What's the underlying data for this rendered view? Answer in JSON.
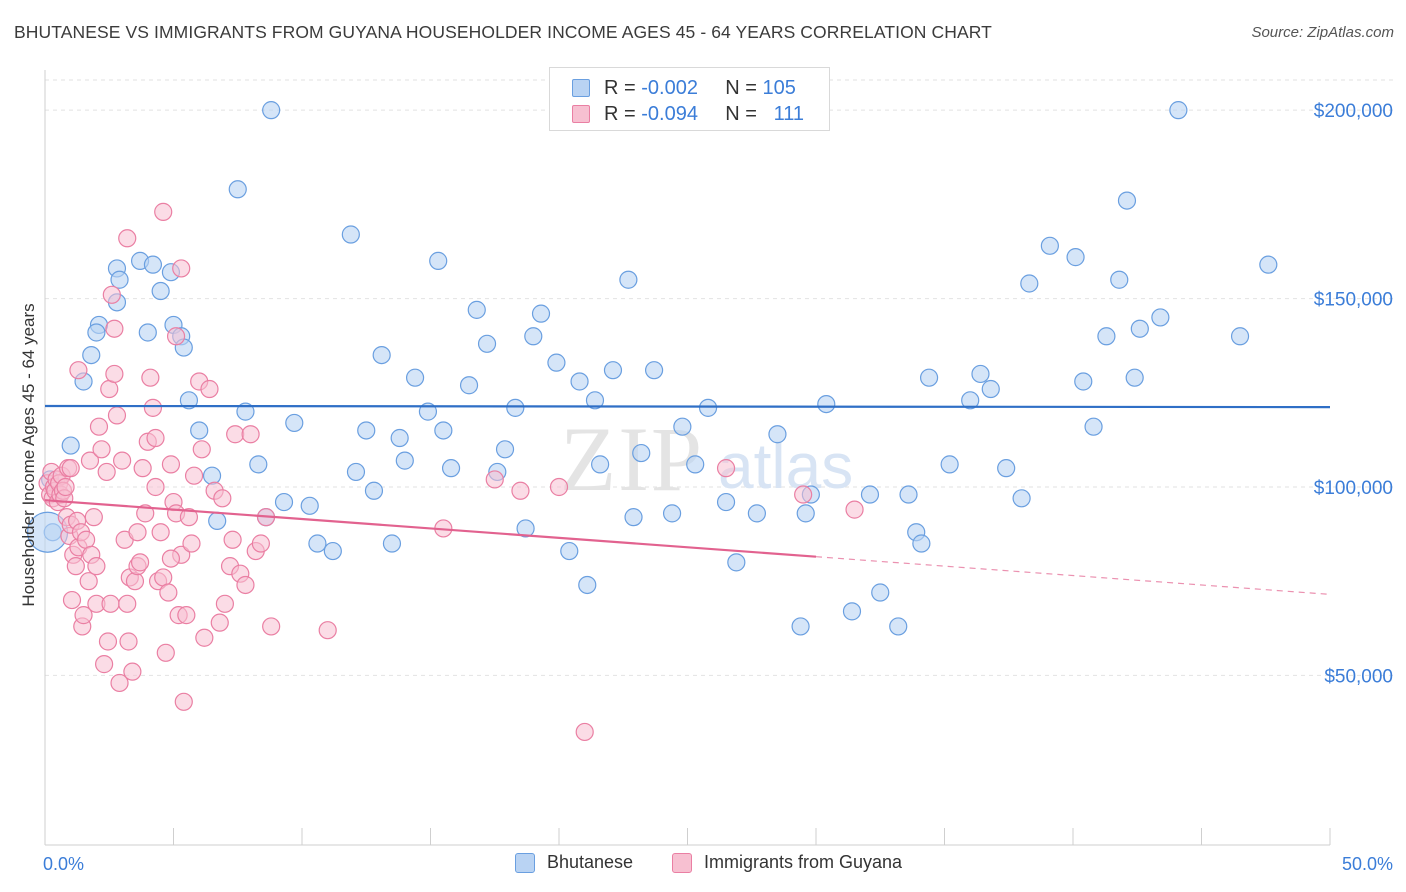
{
  "title": "BHUTANESE VS IMMIGRANTS FROM GUYANA HOUSEHOLDER INCOME AGES 45 - 64 YEARS CORRELATION CHART",
  "source": "Source: ZipAtlas.com",
  "watermark": "ZIPatlas",
  "legend": {
    "rows": [
      {
        "r_label": "R =",
        "r_value": "-0.002",
        "n_label": "N =",
        "n_value": "105"
      },
      {
        "r_label": "R =",
        "r_value": "-0.094",
        "n_label": "N =",
        "n_value": "111"
      }
    ]
  },
  "colors": {
    "blue_fill": "#b9d3f3",
    "blue_stroke": "#6a9fe0",
    "blue_line": "#2f6fc6",
    "pink_fill": "#f7c0d1",
    "pink_stroke": "#ea7fa3",
    "pink_line": "#e2628f",
    "axis_label": "#3b7dd8",
    "grid": "#e2e2e2"
  },
  "chart_data": {
    "type": "scatter",
    "title": "BHUTANESE VS IMMIGRANTS FROM GUYANA HOUSEHOLDER INCOME AGES 45 - 64 YEARS CORRELATION CHART",
    "xlabel": "",
    "ylabel": "Householder Income Ages 45 - 64 years",
    "xlim": [
      0,
      50
    ],
    "ylim": [
      5000,
      208000
    ],
    "x_tick_labels": [
      "0.0%",
      "50.0%"
    ],
    "y_ticks": [
      50000,
      100000,
      150000,
      200000
    ],
    "y_tick_labels": [
      "$50,000",
      "$100,000",
      "$150,000",
      "$200,000"
    ],
    "grid": true,
    "series": [
      {
        "name": "Bhutanese",
        "r": -0.002,
        "n": 105,
        "trend": {
          "x0": 0,
          "y0": 121500,
          "x1": 50,
          "y1": 121200
        },
        "points": [
          [
            0.3,
            88000
          ],
          [
            1.0,
            111000
          ],
          [
            0.2,
            102000
          ],
          [
            1.5,
            128000
          ],
          [
            1.8,
            135000
          ],
          [
            2.1,
            143000
          ],
          [
            2.0,
            141000
          ],
          [
            2.8,
            158000
          ],
          [
            2.9,
            155000
          ],
          [
            2.8,
            149000
          ],
          [
            3.7,
            160000
          ],
          [
            4.2,
            159000
          ],
          [
            4.5,
            152000
          ],
          [
            4.9,
            157000
          ],
          [
            4.0,
            141000
          ],
          [
            5.0,
            143000
          ],
          [
            5.3,
            140000
          ],
          [
            5.4,
            137000
          ],
          [
            5.6,
            123000
          ],
          [
            6.0,
            115000
          ],
          [
            6.5,
            103000
          ],
          [
            6.7,
            91000
          ],
          [
            7.5,
            179000
          ],
          [
            7.8,
            120000
          ],
          [
            8.3,
            106000
          ],
          [
            8.6,
            92000
          ],
          [
            9.3,
            96000
          ],
          [
            9.7,
            117000
          ],
          [
            10.3,
            95000
          ],
          [
            10.6,
            85000
          ],
          [
            11.2,
            83000
          ],
          [
            11.9,
            167000
          ],
          [
            12.1,
            104000
          ],
          [
            12.5,
            115000
          ],
          [
            12.8,
            99000
          ],
          [
            13.1,
            135000
          ],
          [
            13.5,
            85000
          ],
          [
            13.8,
            113000
          ],
          [
            14.0,
            107000
          ],
          [
            14.4,
            129000
          ],
          [
            14.9,
            120000
          ],
          [
            15.3,
            160000
          ],
          [
            15.5,
            115000
          ],
          [
            15.8,
            105000
          ],
          [
            16.5,
            127000
          ],
          [
            16.8,
            147000
          ],
          [
            17.2,
            138000
          ],
          [
            17.6,
            104000
          ],
          [
            17.9,
            110000
          ],
          [
            18.3,
            121000
          ],
          [
            18.7,
            89000
          ],
          [
            19.0,
            140000
          ],
          [
            19.3,
            146000
          ],
          [
            19.9,
            133000
          ],
          [
            20.4,
            83000
          ],
          [
            20.8,
            128000
          ],
          [
            21.1,
            74000
          ],
          [
            21.4,
            123000
          ],
          [
            21.6,
            106000
          ],
          [
            22.1,
            131000
          ],
          [
            22.7,
            155000
          ],
          [
            22.9,
            92000
          ],
          [
            23.2,
            109000
          ],
          [
            23.7,
            131000
          ],
          [
            24.4,
            93000
          ],
          [
            24.8,
            116000
          ],
          [
            25.3,
            106000
          ],
          [
            25.8,
            121000
          ],
          [
            26.5,
            96000
          ],
          [
            26.9,
            80000
          ],
          [
            27.7,
            93000
          ],
          [
            28.5,
            114000
          ],
          [
            29.4,
            63000
          ],
          [
            29.6,
            93000
          ],
          [
            29.8,
            98000
          ],
          [
            30.4,
            122000
          ],
          [
            31.4,
            67000
          ],
          [
            32.1,
            98000
          ],
          [
            32.5,
            72000
          ],
          [
            33.2,
            63000
          ],
          [
            33.6,
            98000
          ],
          [
            33.9,
            88000
          ],
          [
            34.1,
            85000
          ],
          [
            34.4,
            129000
          ],
          [
            35.2,
            106000
          ],
          [
            36.0,
            123000
          ],
          [
            36.4,
            130000
          ],
          [
            36.8,
            126000
          ],
          [
            37.4,
            105000
          ],
          [
            38.0,
            97000
          ],
          [
            38.3,
            154000
          ],
          [
            39.1,
            164000
          ],
          [
            40.1,
            161000
          ],
          [
            40.4,
            128000
          ],
          [
            40.8,
            116000
          ],
          [
            41.3,
            140000
          ],
          [
            41.8,
            155000
          ],
          [
            42.1,
            176000
          ],
          [
            42.4,
            129000
          ],
          [
            42.6,
            142000
          ],
          [
            43.4,
            145000
          ],
          [
            46.5,
            140000
          ],
          [
            47.6,
            159000
          ],
          [
            44.1,
            200000
          ],
          [
            8.8,
            200000
          ]
        ]
      },
      {
        "name": "Immigrants from Guyana",
        "r": -0.094,
        "n": 111,
        "trend": {
          "x0": 0,
          "y0": 96500,
          "x1": 30,
          "y1": 81500,
          "dash_x1": 50,
          "dash_y1": 71500
        },
        "points": [
          [
            0.1,
            101000
          ],
          [
            0.2,
            98000
          ],
          [
            0.25,
            104000
          ],
          [
            0.3,
            97000
          ],
          [
            0.35,
            100000
          ],
          [
            0.4,
            99000
          ],
          [
            0.45,
            102000
          ],
          [
            0.5,
            96000
          ],
          [
            0.55,
            101000
          ],
          [
            0.6,
            98000
          ],
          [
            0.65,
            103000
          ],
          [
            0.7,
            99000
          ],
          [
            0.75,
            97000
          ],
          [
            0.8,
            100000
          ],
          [
            0.85,
            92000
          ],
          [
            0.9,
            105000
          ],
          [
            0.95,
            87000
          ],
          [
            1.0,
            90000
          ],
          [
            1.05,
            70000
          ],
          [
            1.1,
            82000
          ],
          [
            1.2,
            79000
          ],
          [
            1.25,
            91000
          ],
          [
            1.3,
            84000
          ],
          [
            1.4,
            88000
          ],
          [
            1.45,
            63000
          ],
          [
            1.5,
            66000
          ],
          [
            1.6,
            86000
          ],
          [
            1.7,
            75000
          ],
          [
            1.75,
            107000
          ],
          [
            1.8,
            82000
          ],
          [
            1.9,
            92000
          ],
          [
            2.0,
            69000
          ],
          [
            2.1,
            116000
          ],
          [
            2.2,
            110000
          ],
          [
            2.3,
            53000
          ],
          [
            2.4,
            104000
          ],
          [
            2.45,
            59000
          ],
          [
            2.5,
            126000
          ],
          [
            2.55,
            69000
          ],
          [
            2.6,
            151000
          ],
          [
            2.7,
            130000
          ],
          [
            2.8,
            119000
          ],
          [
            2.9,
            48000
          ],
          [
            3.0,
            107000
          ],
          [
            3.1,
            86000
          ],
          [
            3.2,
            69000
          ],
          [
            3.25,
            59000
          ],
          [
            3.3,
            76000
          ],
          [
            3.4,
            51000
          ],
          [
            3.5,
            75000
          ],
          [
            3.6,
            79000
          ],
          [
            3.7,
            80000
          ],
          [
            3.8,
            105000
          ],
          [
            3.9,
            93000
          ],
          [
            4.0,
            112000
          ],
          [
            4.1,
            129000
          ],
          [
            4.2,
            121000
          ],
          [
            4.3,
            113000
          ],
          [
            4.4,
            75000
          ],
          [
            4.5,
            88000
          ],
          [
            4.6,
            76000
          ],
          [
            4.7,
            56000
          ],
          [
            4.8,
            72000
          ],
          [
            4.9,
            106000
          ],
          [
            5.0,
            96000
          ],
          [
            5.1,
            93000
          ],
          [
            5.2,
            66000
          ],
          [
            5.3,
            82000
          ],
          [
            5.4,
            43000
          ],
          [
            5.6,
            92000
          ],
          [
            5.7,
            85000
          ],
          [
            5.8,
            103000
          ],
          [
            6.0,
            128000
          ],
          [
            6.2,
            60000
          ],
          [
            6.4,
            126000
          ],
          [
            6.6,
            99000
          ],
          [
            6.8,
            64000
          ],
          [
            7.0,
            69000
          ],
          [
            7.2,
            79000
          ],
          [
            7.4,
            114000
          ],
          [
            7.6,
            77000
          ],
          [
            7.8,
            74000
          ],
          [
            8.0,
            114000
          ],
          [
            8.2,
            83000
          ],
          [
            8.4,
            85000
          ],
          [
            8.6,
            92000
          ],
          [
            8.8,
            63000
          ],
          [
            3.2,
            166000
          ],
          [
            4.6,
            173000
          ],
          [
            5.1,
            140000
          ],
          [
            5.3,
            158000
          ],
          [
            1.3,
            131000
          ],
          [
            1.0,
            105000
          ],
          [
            2.7,
            142000
          ],
          [
            11.0,
            62000
          ],
          [
            15.5,
            89000
          ],
          [
            17.5,
            102000
          ],
          [
            18.5,
            99000
          ],
          [
            20.0,
            100000
          ],
          [
            21.0,
            35000
          ],
          [
            26.5,
            105000
          ],
          [
            29.5,
            98000
          ],
          [
            31.5,
            94000
          ],
          [
            2.0,
            79000
          ],
          [
            3.6,
            88000
          ],
          [
            4.3,
            100000
          ],
          [
            4.9,
            81000
          ],
          [
            5.5,
            66000
          ],
          [
            6.1,
            110000
          ],
          [
            6.9,
            97000
          ],
          [
            7.3,
            86000
          ]
        ]
      }
    ]
  },
  "bottom_legend": {
    "items": [
      {
        "label": "Bhutanese"
      },
      {
        "label": "Immigrants from Guyana"
      }
    ]
  }
}
